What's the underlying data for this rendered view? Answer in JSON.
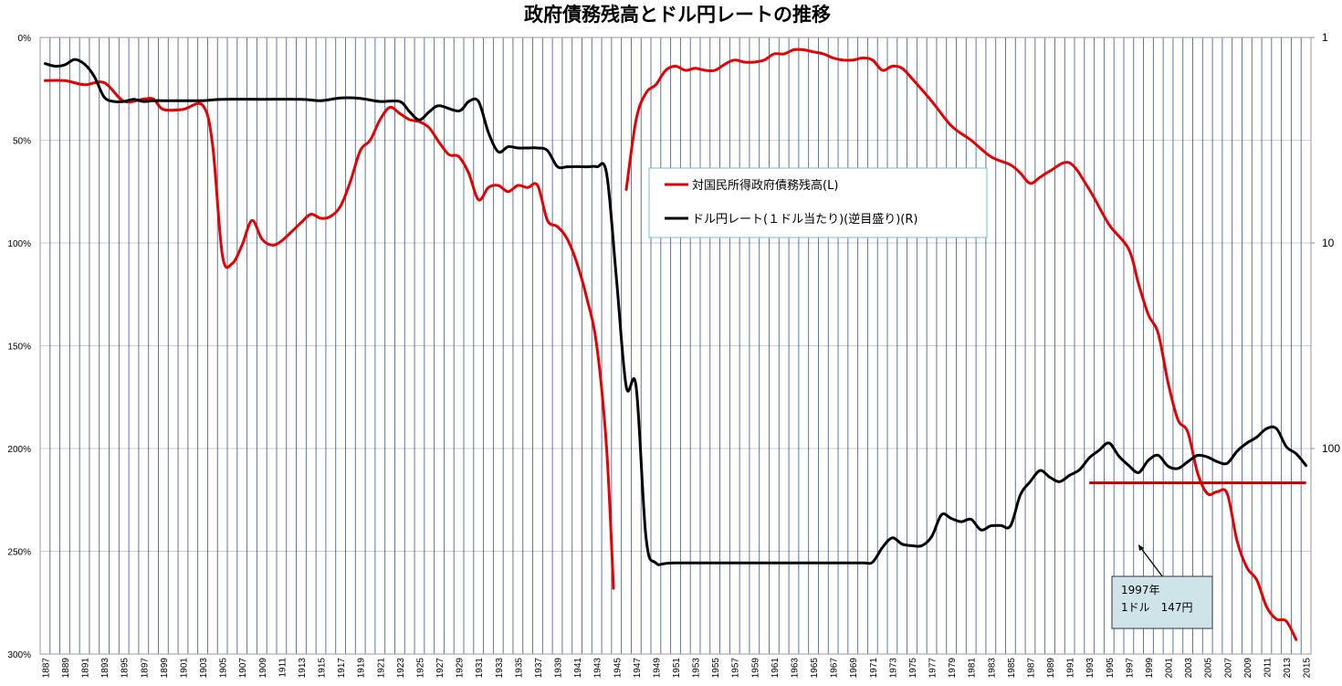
{
  "chart_data": {
    "type": "line",
    "title": "政府債務残高とドル円レートの推移",
    "x_ticks": [
      "1887",
      "1889",
      "1891",
      "1893",
      "1895",
      "1897",
      "1899",
      "1901",
      "1903",
      "1905",
      "1907",
      "1909",
      "1911",
      "1913",
      "1915",
      "1917",
      "1919",
      "1921",
      "1923",
      "1925",
      "1927",
      "1929",
      "1931",
      "1933",
      "1935",
      "1937",
      "1939",
      "1941",
      "1943",
      "1945",
      "1947",
      "1949",
      "1951",
      "1953",
      "1955",
      "1957",
      "1959",
      "1961",
      "1963",
      "1965",
      "1967",
      "1969",
      "1971",
      "1973",
      "1975",
      "1977",
      "1979",
      "1981",
      "1983",
      "1985",
      "1987",
      "1989",
      "1991",
      "1993",
      "1995",
      "1997",
      "1999",
      "2001",
      "2003",
      "2005",
      "2007",
      "2009",
      "2011",
      "2013",
      "2015"
    ],
    "xlim": [
      1887,
      2015
    ],
    "y_left": {
      "ticks": [
        "0%",
        "50%",
        "100%",
        "150%",
        "200%",
        "250%",
        "300%"
      ],
      "range": [
        0,
        300
      ],
      "inverted": true
    },
    "y_right": {
      "ticks": [
        "1",
        "10",
        "100"
      ],
      "range": [
        1,
        1000
      ],
      "scale": "log",
      "inverted": true
    },
    "legend": {
      "placement": "center",
      "entries": [
        "対国民所得政府債務残高(L)",
        "ドル円レート(１ドル当たり)(逆目盛り)(R)"
      ]
    },
    "series": [
      {
        "name": "対国民所得政府債務残高(L)",
        "color": "#e60000",
        "axis": "left",
        "segments": [
          [
            [
              1887,
              21
            ],
            [
              1889,
              21
            ],
            [
              1891,
              23
            ],
            [
              1893,
              22
            ],
            [
              1895,
              31
            ],
            [
              1897,
              30
            ],
            [
              1898,
              30
            ],
            [
              1899,
              35
            ],
            [
              1901,
              35
            ],
            [
              1903,
              33
            ],
            [
              1904,
              52
            ],
            [
              1905,
              106
            ],
            [
              1906,
              110
            ],
            [
              1907,
              101
            ],
            [
              1908,
              89
            ],
            [
              1909,
              98
            ],
            [
              1910,
              101
            ],
            [
              1911,
              99
            ],
            [
              1913,
              90
            ],
            [
              1914,
              86
            ],
            [
              1915,
              88
            ],
            [
              1916,
              87
            ],
            [
              1917,
              82
            ],
            [
              1918,
              70
            ],
            [
              1919,
              55
            ],
            [
              1920,
              50
            ],
            [
              1921,
              40
            ],
            [
              1922,
              34
            ],
            [
              1923,
              37
            ],
            [
              1924,
              40
            ],
            [
              1925,
              41
            ],
            [
              1926,
              44
            ],
            [
              1927,
              51
            ],
            [
              1928,
              57
            ],
            [
              1929,
              58
            ],
            [
              1930,
              66
            ],
            [
              1931,
              79
            ],
            [
              1932,
              73
            ],
            [
              1933,
              72
            ],
            [
              1934,
              75
            ],
            [
              1935,
              72
            ],
            [
              1936,
              73
            ],
            [
              1937,
              72
            ],
            [
              1938,
              89
            ],
            [
              1939,
              92
            ],
            [
              1940,
              98
            ],
            [
              1941,
              110
            ],
            [
              1942,
              127
            ],
            [
              1943,
              150
            ],
            [
              1944,
              200
            ],
            [
              1944.7,
              268
            ]
          ],
          [
            [
              1946,
              74
            ],
            [
              1947,
              40
            ],
            [
              1948,
              27
            ],
            [
              1949,
              23
            ],
            [
              1950,
              16
            ],
            [
              1951,
              14
            ],
            [
              1952,
              16
            ],
            [
              1953,
              15
            ],
            [
              1954,
              16
            ],
            [
              1955,
              16
            ],
            [
              1956,
              13
            ],
            [
              1957,
              11
            ],
            [
              1958,
              12
            ],
            [
              1959,
              12
            ],
            [
              1960,
              11
            ],
            [
              1961,
              8
            ],
            [
              1962,
              8
            ],
            [
              1963,
              6
            ],
            [
              1964,
              6
            ],
            [
              1965,
              7
            ],
            [
              1966,
              8
            ],
            [
              1967,
              10
            ],
            [
              1968,
              11
            ],
            [
              1969,
              11
            ],
            [
              1970,
              10
            ],
            [
              1971,
              11
            ],
            [
              1972,
              16
            ],
            [
              1973,
              14
            ],
            [
              1974,
              15
            ],
            [
              1975,
              20
            ],
            [
              1977,
              31
            ],
            [
              1979,
              43
            ],
            [
              1981,
              50
            ],
            [
              1983,
              58
            ],
            [
              1985,
              62
            ],
            [
              1986,
              66
            ],
            [
              1987,
              71
            ],
            [
              1988,
              68
            ],
            [
              1989,
              65
            ],
            [
              1991,
              61
            ],
            [
              1993,
              74
            ],
            [
              1995,
              91
            ],
            [
              1997,
              103
            ],
            [
              1998,
              120
            ],
            [
              1999,
              135
            ],
            [
              2000,
              144
            ],
            [
              2001,
              168
            ],
            [
              2002,
              186
            ],
            [
              2003,
              192
            ],
            [
              2004,
              212
            ],
            [
              2005,
              222
            ],
            [
              2006,
              221
            ],
            [
              2007,
              222
            ],
            [
              2008,
              245
            ],
            [
              2009,
              258
            ],
            [
              2010,
              264
            ],
            [
              2011,
              277
            ],
            [
              2012,
              283
            ],
            [
              2013,
              284
            ],
            [
              2014,
              293
            ]
          ]
        ]
      },
      {
        "name": "ドル円レート(１ドル当たり)(逆目盛り)(R)",
        "color": "#000000",
        "axis": "right",
        "segments": [
          [
            [
              1887,
              1.34
            ],
            [
              1888,
              1.38
            ],
            [
              1889,
              1.36
            ],
            [
              1890,
              1.28
            ],
            [
              1891,
              1.35
            ],
            [
              1892,
              1.55
            ],
            [
              1893,
              1.95
            ],
            [
              1894,
              2.05
            ],
            [
              1895,
              2.05
            ],
            [
              1896,
              2.0
            ],
            [
              1897,
              2.05
            ],
            [
              1898,
              2.03
            ],
            [
              1899,
              2.03
            ],
            [
              1901,
              2.03
            ],
            [
              1903,
              2.03
            ],
            [
              1905,
              2.0
            ],
            [
              1909,
              2.0
            ],
            [
              1913,
              2.0
            ],
            [
              1915,
              2.03
            ],
            [
              1917,
              1.97
            ],
            [
              1919,
              1.98
            ],
            [
              1921,
              2.05
            ],
            [
              1923,
              2.05
            ],
            [
              1924,
              2.3
            ],
            [
              1925,
              2.52
            ],
            [
              1926,
              2.3
            ],
            [
              1927,
              2.15
            ],
            [
              1929,
              2.28
            ],
            [
              1930,
              2.05
            ],
            [
              1931,
              2.05
            ],
            [
              1932,
              2.9
            ],
            [
              1933,
              3.6
            ],
            [
              1934,
              3.4
            ],
            [
              1935,
              3.45
            ],
            [
              1936,
              3.45
            ],
            [
              1937,
              3.45
            ],
            [
              1938,
              3.55
            ],
            [
              1939,
              4.25
            ],
            [
              1940,
              4.26
            ],
            [
              1941,
              4.25
            ],
            [
              1942,
              4.26
            ],
            [
              1943,
              4.26
            ],
            [
              1944,
              4.6
            ],
            [
              1945,
              15
            ],
            [
              1946,
              50
            ],
            [
              1947,
              50
            ],
            [
              1948,
              270
            ],
            [
              1949,
              360
            ],
            [
              1951,
              360
            ],
            [
              1961,
              360
            ],
            [
              1967,
              360
            ],
            [
              1970,
              360
            ],
            [
              1971,
              357
            ],
            [
              1972,
              303
            ],
            [
              1973,
              272
            ],
            [
              1974,
              292
            ],
            [
              1975,
              297
            ],
            [
              1976,
              297
            ],
            [
              1977,
              268
            ],
            [
              1978,
              210
            ],
            [
              1979,
              219
            ],
            [
              1980,
              227
            ],
            [
              1981,
              221
            ],
            [
              1982,
              249
            ],
            [
              1983,
              238
            ],
            [
              1984,
              237
            ],
            [
              1985,
              238
            ],
            [
              1986,
              168
            ],
            [
              1987,
              145
            ],
            [
              1988,
              128
            ],
            [
              1989,
              138
            ],
            [
              1990,
              145
            ],
            [
              1991,
              135
            ],
            [
              1992,
              127
            ],
            [
              1993,
              111
            ],
            [
              1994,
              102
            ],
            [
              1995,
              94
            ],
            [
              1996,
              109
            ],
            [
              1997,
              121
            ],
            [
              1998,
              131
            ],
            [
              1999,
              114
            ],
            [
              2000,
              108
            ],
            [
              2001,
              122
            ],
            [
              2002,
              125
            ],
            [
              2003,
              116
            ],
            [
              2004,
              108
            ],
            [
              2005,
              110
            ],
            [
              2006,
              116
            ],
            [
              2007,
              118
            ],
            [
              2008,
              103
            ],
            [
              2009,
              94
            ],
            [
              2010,
              88
            ],
            [
              2011,
              80
            ],
            [
              2012,
              80
            ],
            [
              2013,
              98
            ],
            [
              2014,
              106
            ],
            [
              2015,
              121
            ]
          ]
        ]
      }
    ],
    "reference_line": {
      "label": "1997年\n1ドル　147円",
      "value_yen": 147,
      "year": 1997,
      "x_range": [
        1993,
        2015
      ],
      "color": "#c00000"
    },
    "annotation": {
      "line1": "1997年",
      "line2": "1ドル　147円"
    },
    "grid": {
      "vertical": true,
      "horizontal": true,
      "vertical_color": "#2a4d8f",
      "horizontal_color": "#c8d0dc"
    }
  }
}
